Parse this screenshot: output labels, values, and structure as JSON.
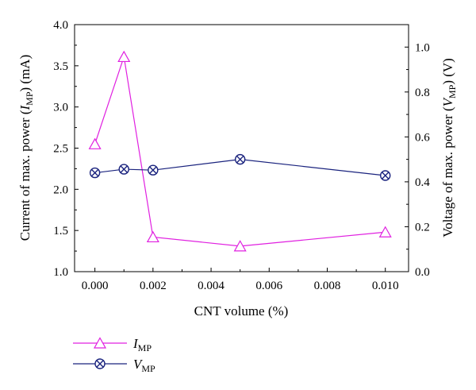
{
  "chart_data": {
    "type": "line",
    "xlabel": "CNT volume (%)",
    "x_ticks": [
      "0.000",
      "0.002",
      "0.004",
      "0.006",
      "0.008",
      "0.010"
    ],
    "xlim": [
      -0.0007,
      0.0108
    ],
    "left_axis": {
      "label_prefix": "Current of max. power (",
      "label_var": "I",
      "label_sub": "MP",
      "label_suffix": ") (mA)",
      "ylim": [
        1.0,
        4.0
      ],
      "ticks": [
        "1.0",
        "1.5",
        "2.0",
        "2.5",
        "3.0",
        "3.5",
        "4.0"
      ]
    },
    "right_axis": {
      "label_prefix": "Voltage of max. power (",
      "label_var": "V",
      "label_sub": "MP",
      "label_suffix": ") (V)",
      "ylim": [
        0.0,
        1.1
      ],
      "ticks": [
        "0.0",
        "0.2",
        "0.4",
        "0.6",
        "0.8",
        "1.0"
      ]
    },
    "series": [
      {
        "name_var": "I",
        "name_sub": "MP",
        "axis": "left",
        "color": "#e020e0",
        "marker": "triangle",
        "x": [
          0.0,
          0.001,
          0.002,
          0.005,
          0.01
        ],
        "y": [
          2.55,
          3.61,
          1.42,
          1.31,
          1.48
        ]
      },
      {
        "name_var": "V",
        "name_sub": "MP",
        "axis": "right",
        "color": "#1a237e",
        "marker": "circle-x",
        "x": [
          0.0,
          0.001,
          0.002,
          0.005,
          0.01
        ],
        "y": [
          0.44,
          0.456,
          0.452,
          0.5,
          0.428
        ]
      }
    ],
    "legend_position": "bottom-left"
  }
}
